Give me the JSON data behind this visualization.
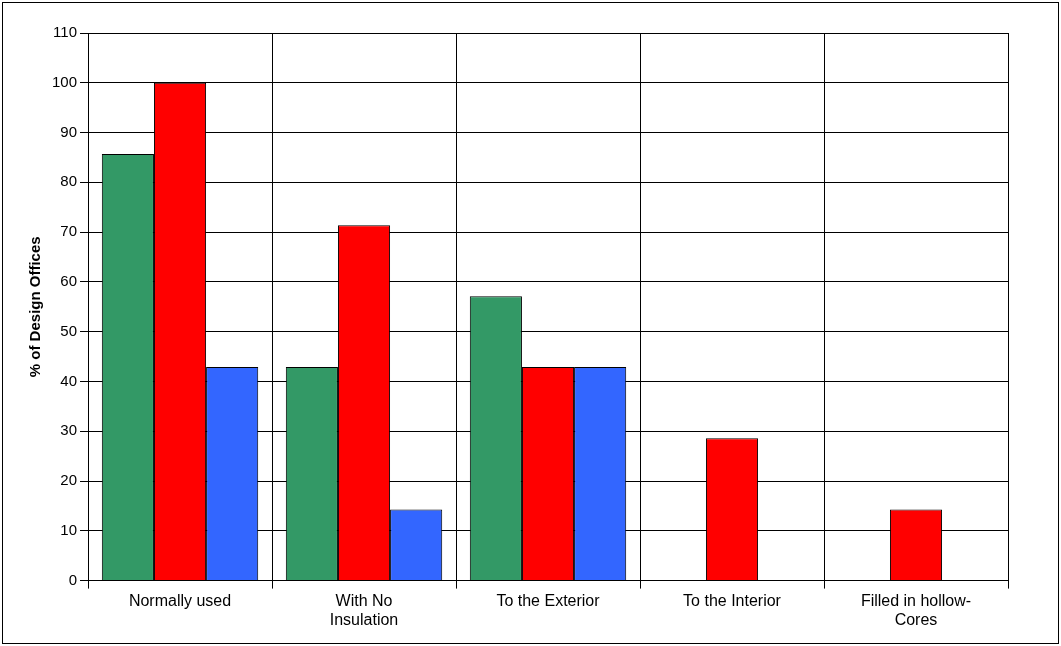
{
  "chart_data": {
    "type": "bar",
    "ylabel": "% of Design Offices",
    "categories": [
      "Normally used",
      "With No Insulation",
      "To the Exterior",
      "To the Interior",
      "Filled in hollow-Cores"
    ],
    "series": [
      {
        "color": "#339966",
        "values": [
          85.7,
          42.9,
          57.1,
          0,
          0
        ]
      },
      {
        "color": "#ff0000",
        "values": [
          100,
          71.4,
          42.9,
          28.6,
          14.3
        ]
      },
      {
        "color": "#3366ff",
        "values": [
          42.9,
          14.3,
          42.9,
          0,
          0
        ]
      }
    ],
    "ylim": [
      0,
      110
    ],
    "yticks": [
      0,
      10,
      20,
      30,
      40,
      50,
      60,
      70,
      80,
      90,
      100,
      110
    ],
    "grid": true,
    "legend": false
  }
}
